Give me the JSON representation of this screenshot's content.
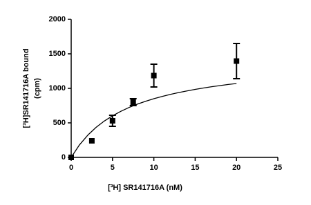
{
  "chart_data": {
    "type": "scatter",
    "xlabel": "[³H] SR141716A (nM)",
    "ylabel": [
      "[³H]SR141716A bound",
      "(cpm)"
    ],
    "xlim": [
      0,
      25
    ],
    "xticks": [
      0,
      5,
      10,
      15,
      20,
      25
    ],
    "ylim": [
      0,
      2000
    ],
    "yticks": [
      0,
      500,
      1000,
      1500,
      2000
    ],
    "color": "#000000",
    "series": [
      {
        "x": [
          0,
          2.5,
          5,
          7.5,
          10,
          20
        ],
        "values": [
          0,
          240,
          530,
          800,
          1185,
          1395
        ],
        "errors": [
          null,
          null,
          80,
          50,
          165,
          255
        ]
      }
    ],
    "curve": {
      "x": [
        0,
        1,
        2,
        3,
        4,
        5,
        6,
        7,
        8,
        9,
        10,
        11,
        12,
        13,
        14,
        15,
        16,
        17,
        18,
        19,
        20
      ],
      "values": [
        0,
        181,
        321,
        434,
        526,
        602,
        667,
        723,
        771,
        813,
        850,
        883,
        913,
        939,
        963,
        985,
        1005,
        1024,
        1040,
        1056,
        1070
      ]
    }
  }
}
